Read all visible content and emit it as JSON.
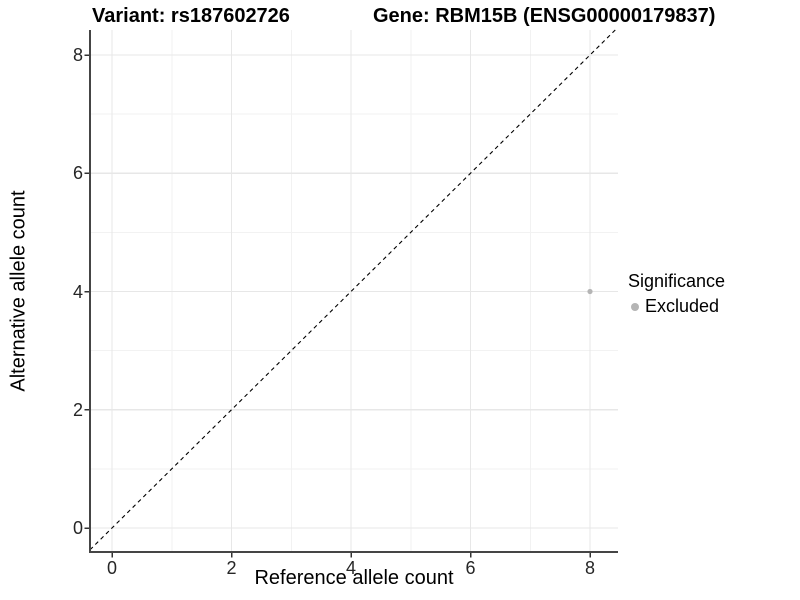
{
  "figure": {
    "title_variant": "Variant: rs187602726",
    "title_gene": "Gene: RBM15B (ENSG00000179837)"
  },
  "legend": {
    "title": "Significance",
    "items": [
      {
        "label": "Excluded",
        "color": "#b5b5b5",
        "marker": "circle"
      }
    ]
  },
  "chart_data": {
    "type": "scatter",
    "title_left": "Variant: rs187602726",
    "title_right": "Gene: RBM15B (ENSG00000179837)",
    "xlabel": "Reference allele count",
    "ylabel": "Alternative allele count",
    "x_ticks": [
      0,
      2,
      4,
      6,
      8
    ],
    "y_ticks": [
      0,
      2,
      4,
      6,
      8
    ],
    "xlim": [
      -0.37,
      8.47
    ],
    "ylim": [
      -0.41,
      8.43
    ],
    "grid": {
      "show": true,
      "lines_at_integers": [
        0,
        1,
        2,
        3,
        4,
        5,
        6,
        7,
        8
      ],
      "major_every": 2,
      "major_color": "#e7e7e7",
      "minor_color": "#f2f2f2"
    },
    "series": [
      {
        "name": "Excluded",
        "color": "#b5b5b5",
        "points": [
          {
            "x": 8,
            "y": 4
          }
        ]
      }
    ],
    "reference_line": {
      "kind": "identity",
      "style": "dashed",
      "color": "#000000"
    },
    "legend_position": "right",
    "legend_title": "Significance"
  },
  "colors": {
    "background": "#ffffff",
    "axis_line": "#454545",
    "tick_mark": "#333333",
    "tick_label": "#262626"
  }
}
